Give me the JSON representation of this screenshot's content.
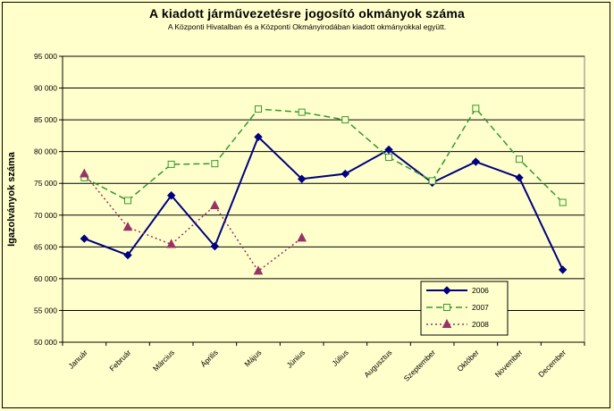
{
  "chart_data": {
    "type": "line",
    "title": "A  kiadott járművezetésre  jogosító okmányok száma",
    "subtitle": "A  Központi Hivatalban és a Központi Okmányirodában kiadott okmányokkal együtt.",
    "ylabel": "Igazolványok száma",
    "xlabel": "",
    "categories": [
      "Január",
      "Február",
      "Március",
      "Április",
      "Május",
      "Június",
      "Július",
      "Augusztus",
      "Szeptember",
      "Október",
      "November",
      "December"
    ],
    "ylim": [
      50000,
      95000
    ],
    "yticks": [
      50000,
      55000,
      60000,
      65000,
      70000,
      75000,
      80000,
      85000,
      90000,
      95000
    ],
    "ytick_labels": [
      "50 000",
      "55 000",
      "60 000",
      "65 000",
      "70 000",
      "75 000",
      "80 000",
      "85 000",
      "90 000",
      "95 000"
    ],
    "grid": true,
    "legend_position": "bottom-right",
    "series": [
      {
        "name": "2006",
        "color": "#000080",
        "style": "solid",
        "marker": "diamond",
        "values": [
          66300,
          63700,
          73100,
          65100,
          82300,
          75700,
          76500,
          80300,
          75100,
          78400,
          75900,
          61400
        ]
      },
      {
        "name": "2007",
        "color": "#339933",
        "style": "dashed",
        "marker": "square-open",
        "values": [
          75900,
          72300,
          78000,
          78100,
          86700,
          86200,
          85000,
          79100,
          75400,
          86800,
          78800,
          72000
        ]
      },
      {
        "name": "2008",
        "color": "#993366",
        "style": "dotted",
        "marker": "triangle",
        "values": [
          76500,
          68100,
          65400,
          71500,
          61200,
          66400,
          null,
          null,
          null,
          null,
          null,
          null
        ]
      }
    ]
  }
}
